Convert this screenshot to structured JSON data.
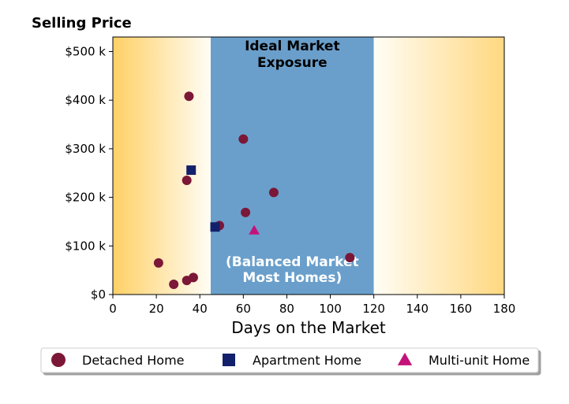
{
  "chart_data": {
    "type": "scatter",
    "title": "Selling Price",
    "xlabel": "Days on the Market",
    "ylabel": "",
    "xlim": [
      0,
      180
    ],
    "ylim": [
      0,
      530000
    ],
    "x_ticks": [
      0,
      20,
      40,
      60,
      80,
      100,
      120,
      140,
      160,
      180
    ],
    "x_tick_labels": [
      "0",
      "20",
      "40",
      "60",
      "80",
      "100",
      "120",
      "140",
      "160",
      "180"
    ],
    "y_ticks": [
      0,
      100000,
      200000,
      300000,
      400000,
      500000
    ],
    "y_tick_labels": [
      "$0",
      "$100 k",
      "$200 k",
      "$300 k",
      "$400 k",
      "$500 k"
    ],
    "grid": false,
    "legend_position": "bottom",
    "bands": [
      {
        "x_start": 0,
        "x_end": 45,
        "type": "gradient",
        "edge_color": "#ffd066",
        "inner_color": "#fffdf5"
      },
      {
        "x_start": 45,
        "x_end": 120,
        "type": "solid",
        "color": "#6a9fcb",
        "top_label": [
          "Ideal Market",
          "Exposure"
        ],
        "bottom_label": [
          "(Balanced Market",
          "Most Homes)"
        ]
      },
      {
        "x_start": 120,
        "x_end": 180,
        "type": "gradient",
        "edge_color": "#ffd880",
        "inner_color": "#fffdf5"
      }
    ],
    "series": [
      {
        "name": "Detached Home",
        "marker": "circle",
        "color": "#7b1737",
        "points": [
          {
            "x": 35,
            "y": 408000
          },
          {
            "x": 60,
            "y": 320000
          },
          {
            "x": 34,
            "y": 235000
          },
          {
            "x": 74,
            "y": 210000
          },
          {
            "x": 61,
            "y": 169000
          },
          {
            "x": 49,
            "y": 142000
          },
          {
            "x": 21,
            "y": 65000
          },
          {
            "x": 109,
            "y": 76000
          },
          {
            "x": 37,
            "y": 35000
          },
          {
            "x": 34,
            "y": 29000
          },
          {
            "x": 28,
            "y": 21000
          }
        ]
      },
      {
        "name": "Apartment Home",
        "marker": "square",
        "color": "#13206b",
        "points": [
          {
            "x": 36,
            "y": 256000
          },
          {
            "x": 47,
            "y": 139000
          }
        ]
      },
      {
        "name": "Multi-unit Home",
        "marker": "triangle",
        "color": "#c4127a",
        "points": [
          {
            "x": 65,
            "y": 132000
          }
        ]
      }
    ]
  }
}
